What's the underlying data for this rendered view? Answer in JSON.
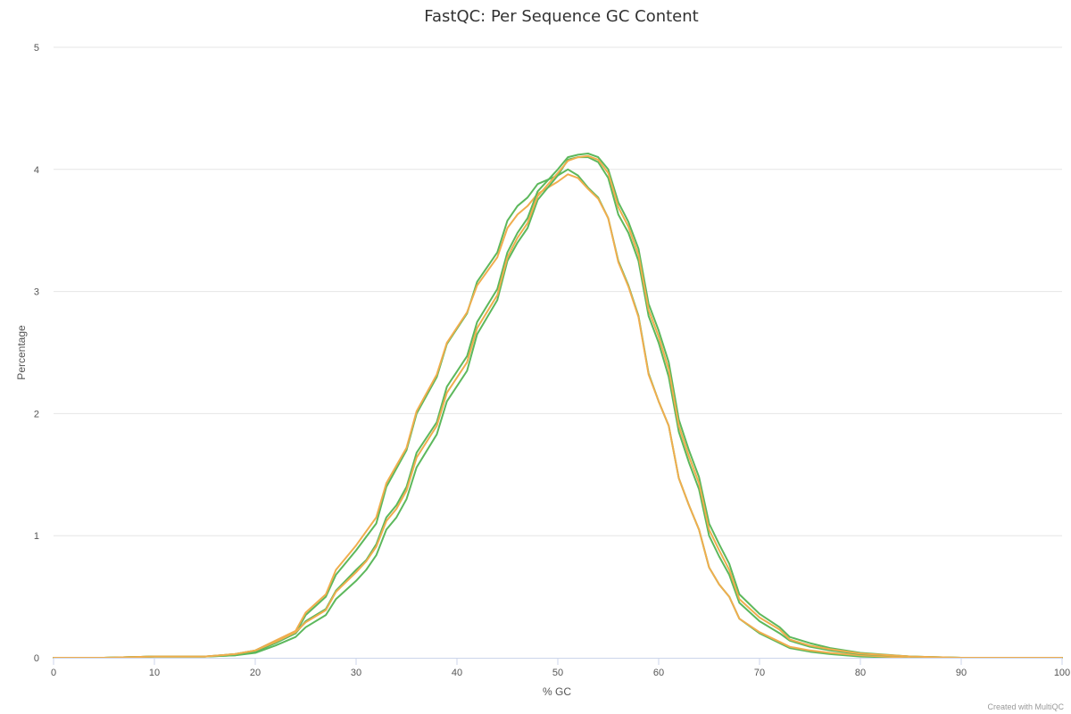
{
  "chart_data": {
    "type": "line",
    "title": "FastQC: Per Sequence GC Content",
    "xlabel": "% GC",
    "ylabel": "Percentage",
    "xlim": [
      0,
      100
    ],
    "ylim": [
      0,
      5
    ],
    "x_ticks": [
      "0",
      "10",
      "20",
      "30",
      "40",
      "50",
      "60",
      "70",
      "80",
      "90",
      "100"
    ],
    "y_ticks": [
      "0",
      "1",
      "2",
      "3",
      "4",
      "5"
    ],
    "grid": true,
    "legend": "none",
    "series": [
      {
        "color": "#5cb85c",
        "points": [
          [
            0,
            0
          ],
          [
            5,
            0
          ],
          [
            10,
            0.01
          ],
          [
            15,
            0.01
          ],
          [
            18,
            0.02
          ],
          [
            20,
            0.05
          ],
          [
            22,
            0.12
          ],
          [
            24,
            0.2
          ],
          [
            25,
            0.35
          ],
          [
            27,
            0.5
          ],
          [
            28,
            0.68
          ],
          [
            30,
            0.88
          ],
          [
            32,
            1.1
          ],
          [
            33,
            1.4
          ],
          [
            35,
            1.7
          ],
          [
            36,
            2.0
          ],
          [
            38,
            2.3
          ],
          [
            39,
            2.57
          ],
          [
            41,
            2.82
          ],
          [
            42,
            3.08
          ],
          [
            44,
            3.32
          ],
          [
            45,
            3.58
          ],
          [
            46,
            3.7
          ],
          [
            47,
            3.77
          ],
          [
            48,
            3.88
          ],
          [
            50,
            3.95
          ],
          [
            51,
            4.0
          ],
          [
            52,
            3.95
          ],
          [
            53,
            3.85
          ],
          [
            54,
            3.77
          ],
          [
            55,
            3.6
          ],
          [
            56,
            3.25
          ],
          [
            57,
            3.05
          ],
          [
            58,
            2.8
          ],
          [
            59,
            2.33
          ],
          [
            60,
            2.1
          ],
          [
            61,
            1.9
          ],
          [
            62,
            1.47
          ],
          [
            63,
            1.25
          ],
          [
            64,
            1.05
          ],
          [
            65,
            0.74
          ],
          [
            66,
            0.6
          ],
          [
            67,
            0.5
          ],
          [
            68,
            0.32
          ],
          [
            70,
            0.2
          ],
          [
            72,
            0.12
          ],
          [
            73,
            0.08
          ],
          [
            75,
            0.05
          ],
          [
            77,
            0.03
          ],
          [
            80,
            0.01
          ],
          [
            85,
            0
          ],
          [
            100,
            0
          ]
        ]
      },
      {
        "color": "#f0ad4e",
        "points": [
          [
            0,
            0
          ],
          [
            5,
            0
          ],
          [
            10,
            0.01
          ],
          [
            15,
            0.01
          ],
          [
            18,
            0.03
          ],
          [
            20,
            0.06
          ],
          [
            22,
            0.14
          ],
          [
            24,
            0.22
          ],
          [
            25,
            0.37
          ],
          [
            27,
            0.52
          ],
          [
            28,
            0.72
          ],
          [
            30,
            0.92
          ],
          [
            32,
            1.15
          ],
          [
            33,
            1.43
          ],
          [
            35,
            1.72
          ],
          [
            36,
            2.02
          ],
          [
            38,
            2.32
          ],
          [
            39,
            2.58
          ],
          [
            41,
            2.83
          ],
          [
            42,
            3.05
          ],
          [
            44,
            3.28
          ],
          [
            45,
            3.52
          ],
          [
            46,
            3.63
          ],
          [
            47,
            3.7
          ],
          [
            48,
            3.8
          ],
          [
            50,
            3.9
          ],
          [
            51,
            3.96
          ],
          [
            52,
            3.93
          ],
          [
            53,
            3.84
          ],
          [
            54,
            3.76
          ],
          [
            55,
            3.6
          ],
          [
            56,
            3.24
          ],
          [
            57,
            3.04
          ],
          [
            58,
            2.79
          ],
          [
            59,
            2.32
          ],
          [
            60,
            2.1
          ],
          [
            61,
            1.9
          ],
          [
            62,
            1.47
          ],
          [
            63,
            1.25
          ],
          [
            64,
            1.05
          ],
          [
            65,
            0.74
          ],
          [
            66,
            0.6
          ],
          [
            67,
            0.5
          ],
          [
            68,
            0.32
          ],
          [
            70,
            0.21
          ],
          [
            72,
            0.13
          ],
          [
            73,
            0.09
          ],
          [
            75,
            0.06
          ],
          [
            77,
            0.04
          ],
          [
            80,
            0.02
          ],
          [
            85,
            0
          ],
          [
            100,
            0
          ]
        ]
      },
      {
        "color": "#5cb85c",
        "points": [
          [
            0,
            0
          ],
          [
            5,
            0
          ],
          [
            10,
            0.01
          ],
          [
            15,
            0.01
          ],
          [
            18,
            0.02
          ],
          [
            20,
            0.04
          ],
          [
            22,
            0.1
          ],
          [
            24,
            0.17
          ],
          [
            25,
            0.25
          ],
          [
            27,
            0.35
          ],
          [
            28,
            0.48
          ],
          [
            30,
            0.63
          ],
          [
            31,
            0.72
          ],
          [
            32,
            0.84
          ],
          [
            33,
            1.05
          ],
          [
            34,
            1.15
          ],
          [
            35,
            1.3
          ],
          [
            36,
            1.56
          ],
          [
            38,
            1.83
          ],
          [
            39,
            2.1
          ],
          [
            41,
            2.35
          ],
          [
            42,
            2.65
          ],
          [
            44,
            2.93
          ],
          [
            45,
            3.25
          ],
          [
            46,
            3.4
          ],
          [
            47,
            3.52
          ],
          [
            48,
            3.75
          ],
          [
            50,
            3.95
          ],
          [
            51,
            4.08
          ],
          [
            52,
            4.1
          ],
          [
            53,
            4.1
          ],
          [
            54,
            4.06
          ],
          [
            55,
            3.93
          ],
          [
            56,
            3.63
          ],
          [
            57,
            3.48
          ],
          [
            58,
            3.25
          ],
          [
            59,
            2.8
          ],
          [
            60,
            2.58
          ],
          [
            61,
            2.3
          ],
          [
            62,
            1.85
          ],
          [
            63,
            1.6
          ],
          [
            64,
            1.38
          ],
          [
            65,
            1.0
          ],
          [
            66,
            0.83
          ],
          [
            67,
            0.68
          ],
          [
            68,
            0.45
          ],
          [
            70,
            0.3
          ],
          [
            72,
            0.2
          ],
          [
            73,
            0.14
          ],
          [
            75,
            0.09
          ],
          [
            77,
            0.06
          ],
          [
            80,
            0.03
          ],
          [
            85,
            0.01
          ],
          [
            90,
            0
          ],
          [
            100,
            0
          ]
        ]
      },
      {
        "color": "#5cb85c",
        "points": [
          [
            0,
            0
          ],
          [
            5,
            0
          ],
          [
            10,
            0.01
          ],
          [
            15,
            0.01
          ],
          [
            18,
            0.03
          ],
          [
            20,
            0.06
          ],
          [
            22,
            0.13
          ],
          [
            24,
            0.2
          ],
          [
            25,
            0.3
          ],
          [
            27,
            0.4
          ],
          [
            28,
            0.55
          ],
          [
            30,
            0.72
          ],
          [
            31,
            0.8
          ],
          [
            32,
            0.93
          ],
          [
            33,
            1.15
          ],
          [
            34,
            1.25
          ],
          [
            35,
            1.4
          ],
          [
            36,
            1.68
          ],
          [
            38,
            1.93
          ],
          [
            39,
            2.22
          ],
          [
            41,
            2.47
          ],
          [
            42,
            2.75
          ],
          [
            44,
            3.02
          ],
          [
            45,
            3.32
          ],
          [
            46,
            3.48
          ],
          [
            47,
            3.6
          ],
          [
            48,
            3.82
          ],
          [
            50,
            4.0
          ],
          [
            51,
            4.1
          ],
          [
            52,
            4.12
          ],
          [
            53,
            4.13
          ],
          [
            54,
            4.1
          ],
          [
            55,
            4.0
          ],
          [
            56,
            3.73
          ],
          [
            57,
            3.57
          ],
          [
            58,
            3.35
          ],
          [
            59,
            2.9
          ],
          [
            60,
            2.68
          ],
          [
            61,
            2.42
          ],
          [
            62,
            1.95
          ],
          [
            63,
            1.7
          ],
          [
            64,
            1.48
          ],
          [
            65,
            1.1
          ],
          [
            66,
            0.93
          ],
          [
            67,
            0.77
          ],
          [
            68,
            0.52
          ],
          [
            70,
            0.36
          ],
          [
            72,
            0.25
          ],
          [
            73,
            0.17
          ],
          [
            75,
            0.12
          ],
          [
            77,
            0.08
          ],
          [
            80,
            0.04
          ],
          [
            85,
            0.01
          ],
          [
            90,
            0
          ],
          [
            100,
            0
          ]
        ]
      },
      {
        "color": "#f0ad4e",
        "points": [
          [
            0,
            0
          ],
          [
            5,
            0
          ],
          [
            10,
            0.01
          ],
          [
            15,
            0.01
          ],
          [
            18,
            0.03
          ],
          [
            20,
            0.06
          ],
          [
            22,
            0.13
          ],
          [
            24,
            0.21
          ],
          [
            25,
            0.29
          ],
          [
            27,
            0.39
          ],
          [
            28,
            0.54
          ],
          [
            30,
            0.7
          ],
          [
            31,
            0.79
          ],
          [
            32,
            0.91
          ],
          [
            33,
            1.12
          ],
          [
            34,
            1.22
          ],
          [
            35,
            1.37
          ],
          [
            36,
            1.64
          ],
          [
            38,
            1.9
          ],
          [
            39,
            2.17
          ],
          [
            41,
            2.42
          ],
          [
            42,
            2.7
          ],
          [
            44,
            2.97
          ],
          [
            45,
            3.28
          ],
          [
            46,
            3.44
          ],
          [
            47,
            3.56
          ],
          [
            48,
            3.78
          ],
          [
            50,
            3.97
          ],
          [
            51,
            4.07
          ],
          [
            52,
            4.1
          ],
          [
            53,
            4.11
          ],
          [
            54,
            4.08
          ],
          [
            55,
            3.97
          ],
          [
            56,
            3.69
          ],
          [
            57,
            3.53
          ],
          [
            58,
            3.3
          ],
          [
            59,
            2.85
          ],
          [
            60,
            2.63
          ],
          [
            61,
            2.36
          ],
          [
            62,
            1.9
          ],
          [
            63,
            1.65
          ],
          [
            64,
            1.43
          ],
          [
            65,
            1.05
          ],
          [
            66,
            0.88
          ],
          [
            67,
            0.72
          ],
          [
            68,
            0.48
          ],
          [
            70,
            0.33
          ],
          [
            72,
            0.23
          ],
          [
            73,
            0.15
          ],
          [
            75,
            0.1
          ],
          [
            77,
            0.07
          ],
          [
            80,
            0.035
          ],
          [
            85,
            0.01
          ],
          [
            90,
            0
          ],
          [
            100,
            0
          ]
        ]
      }
    ]
  },
  "footer": {
    "credit": "Created with MultiQC"
  }
}
